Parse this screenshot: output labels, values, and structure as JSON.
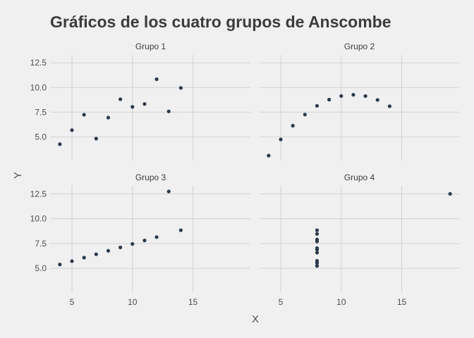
{
  "chart_data": {
    "type": "scatter",
    "title": "Gráficos de los cuatro grupos de Anscombe",
    "xlabel": "X",
    "ylabel": "Y",
    "xlim": [
      3.25,
      19.75
    ],
    "ylim": [
      2.6,
      13.3
    ],
    "x_ticks": [
      5,
      10,
      15
    ],
    "y_ticks": [
      5.0,
      7.5,
      10.0,
      12.5
    ],
    "x_tick_labels": [
      "5",
      "10",
      "15"
    ],
    "y_tick_labels": [
      "5.0",
      "7.5",
      "10.0",
      "12.5"
    ],
    "grid": true,
    "facets": [
      {
        "name": "Grupo 1",
        "x": [
          10,
          8,
          13,
          9,
          11,
          14,
          6,
          4,
          12,
          7,
          5
        ],
        "y": [
          8.04,
          6.95,
          7.58,
          8.81,
          8.33,
          9.96,
          7.24,
          4.26,
          10.84,
          4.82,
          5.68
        ]
      },
      {
        "name": "Grupo 2",
        "x": [
          10,
          8,
          13,
          9,
          11,
          14,
          6,
          4,
          12,
          7,
          5
        ],
        "y": [
          9.14,
          8.14,
          8.74,
          8.77,
          9.26,
          8.1,
          6.13,
          3.1,
          9.13,
          7.26,
          4.74
        ]
      },
      {
        "name": "Grupo 3",
        "x": [
          10,
          8,
          13,
          9,
          11,
          14,
          6,
          4,
          12,
          7,
          5
        ],
        "y": [
          7.46,
          6.77,
          12.74,
          7.11,
          7.81,
          8.84,
          6.08,
          5.39,
          8.15,
          6.42,
          5.73
        ]
      },
      {
        "name": "Grupo 4",
        "x": [
          8,
          8,
          8,
          8,
          8,
          8,
          8,
          19,
          8,
          8,
          8
        ],
        "y": [
          6.58,
          5.76,
          7.71,
          8.84,
          8.47,
          7.04,
          5.25,
          12.5,
          5.56,
          7.91,
          6.89
        ]
      }
    ]
  }
}
